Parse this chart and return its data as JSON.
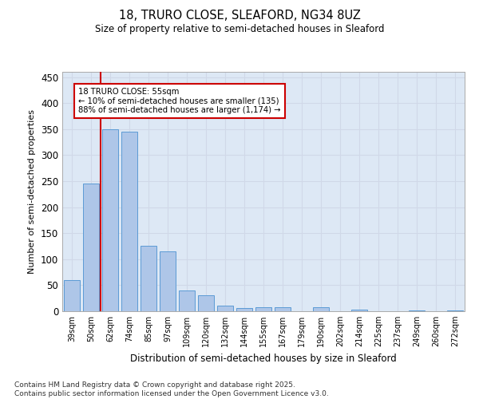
{
  "title1": "18, TRURO CLOSE, SLEAFORD, NG34 8UZ",
  "title2": "Size of property relative to semi-detached houses in Sleaford",
  "xlabel": "Distribution of semi-detached houses by size in Sleaford",
  "ylabel": "Number of semi-detached properties",
  "categories": [
    "39sqm",
    "50sqm",
    "62sqm",
    "74sqm",
    "85sqm",
    "97sqm",
    "109sqm",
    "120sqm",
    "132sqm",
    "144sqm",
    "155sqm",
    "167sqm",
    "179sqm",
    "190sqm",
    "202sqm",
    "214sqm",
    "225sqm",
    "237sqm",
    "249sqm",
    "260sqm",
    "272sqm"
  ],
  "values": [
    60,
    245,
    350,
    345,
    125,
    115,
    40,
    30,
    10,
    6,
    8,
    8,
    0,
    8,
    0,
    3,
    0,
    0,
    2,
    0,
    2
  ],
  "bar_color": "#aec6e8",
  "bar_edge_color": "#5b9bd5",
  "grid_color": "#d0d8e8",
  "background_color": "#dde8f5",
  "property_line_color": "#cc0000",
  "annotation_text": "18 TRURO CLOSE: 55sqm\n← 10% of semi-detached houses are smaller (135)\n88% of semi-detached houses are larger (1,174) →",
  "annotation_box_color": "#cc0000",
  "ylim": [
    0,
    460
  ],
  "yticks": [
    0,
    50,
    100,
    150,
    200,
    250,
    300,
    350,
    400,
    450
  ],
  "footnote": "Contains HM Land Registry data © Crown copyright and database right 2025.\nContains public sector information licensed under the Open Government Licence v3.0."
}
